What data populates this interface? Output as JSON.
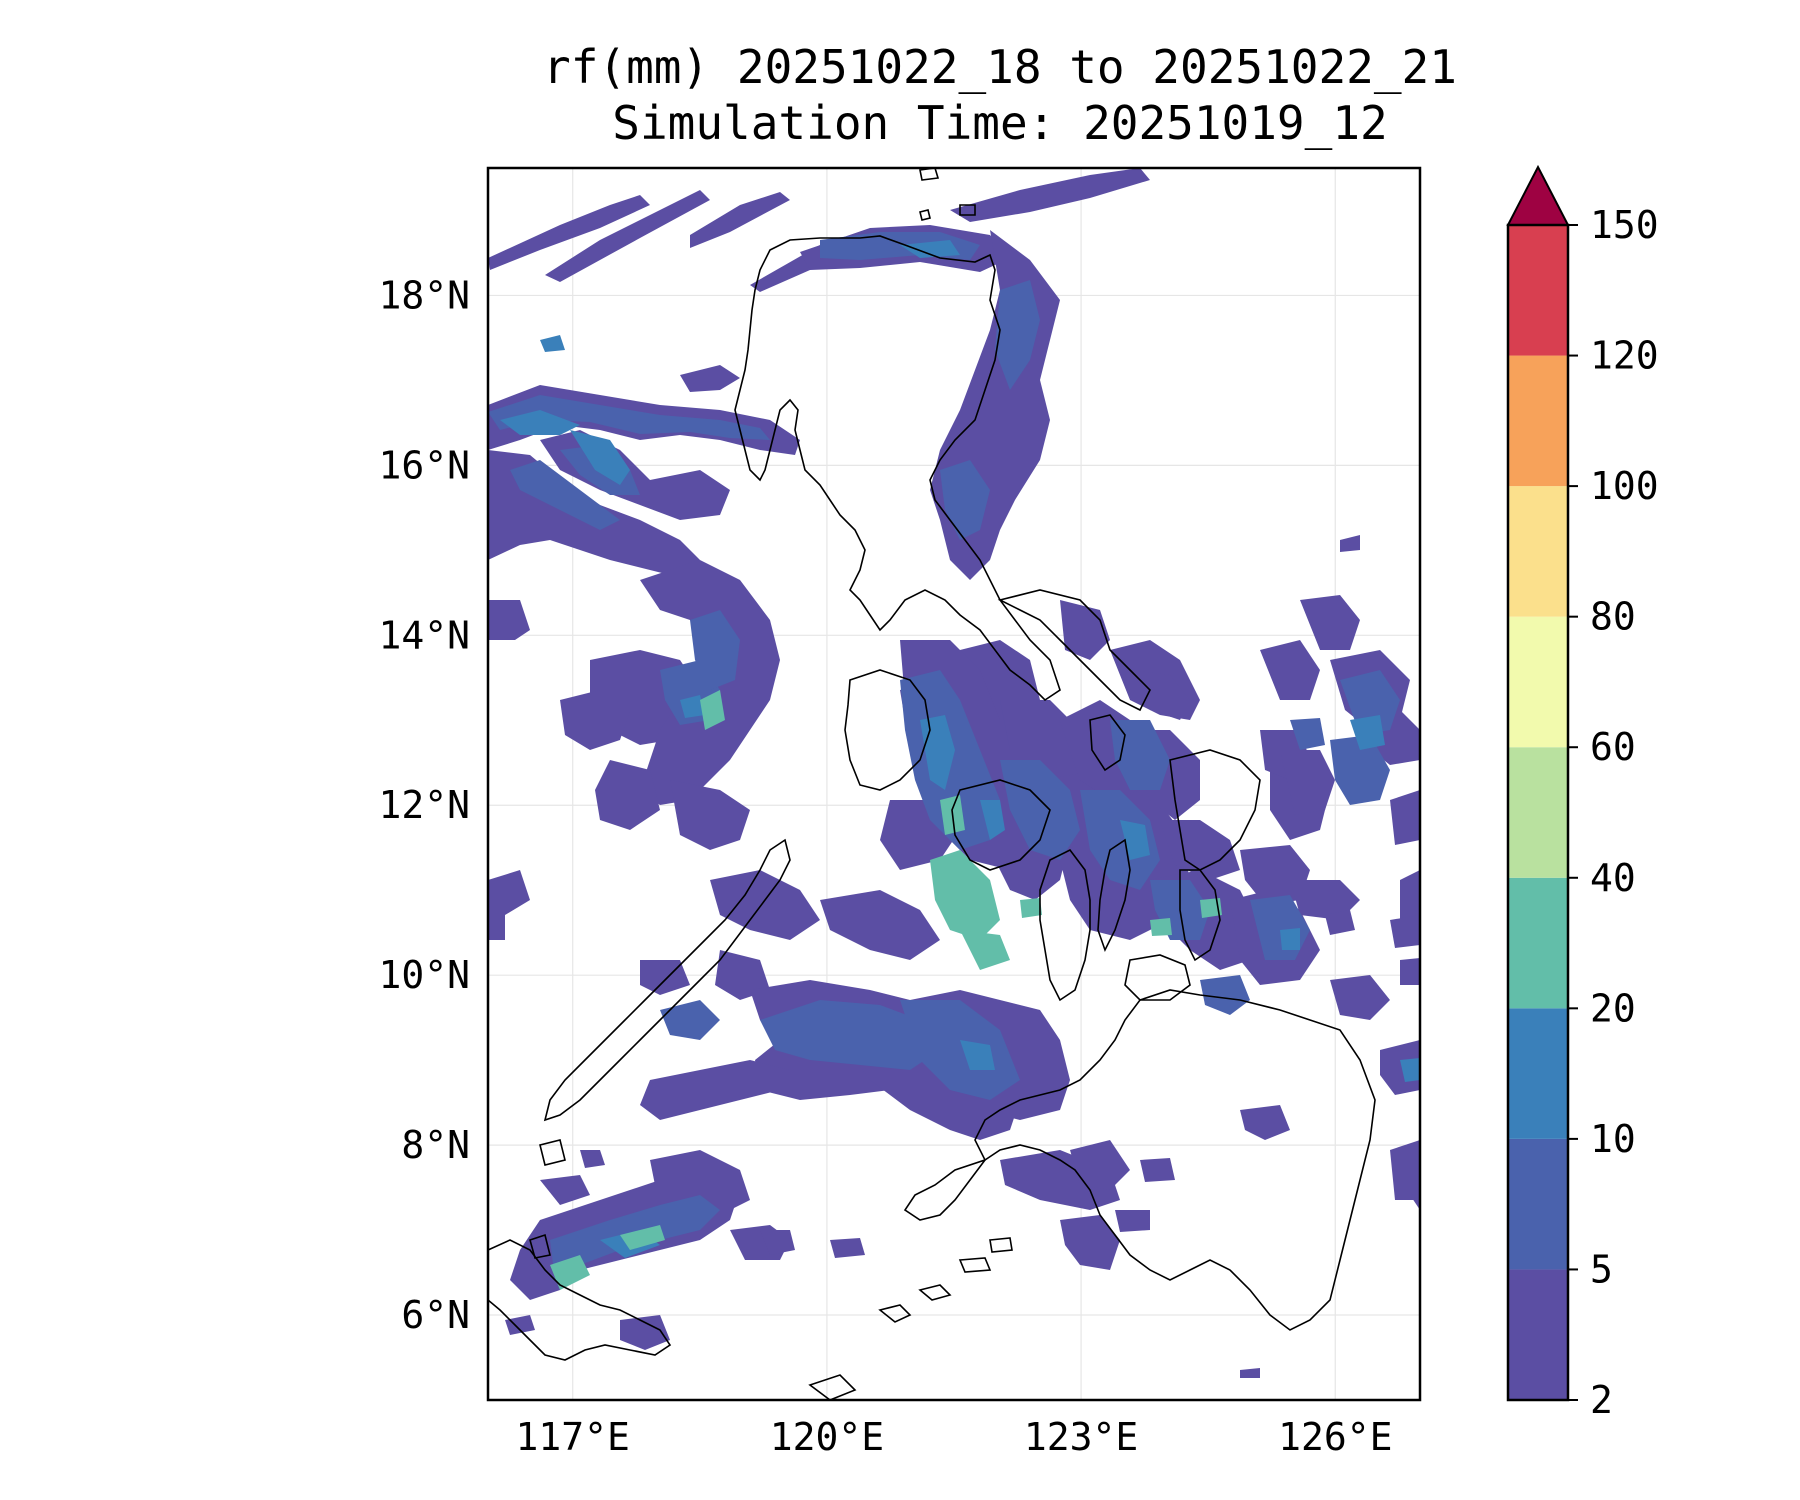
{
  "title": {
    "line1": "rf(mm) 20251022_18 to 20251022_21",
    "line2": "Simulation Time: 20251019_12"
  },
  "map": {
    "lon_labels": [
      "117°E",
      "120°E",
      "123°E",
      "126°E"
    ],
    "lat_labels": [
      "6°N",
      "8°N",
      "10°N",
      "12°N",
      "14°N",
      "16°N",
      "18°N"
    ],
    "extent": {
      "lon": [
        116.0,
        127.0
      ],
      "lat": [
        5.0,
        19.5
      ]
    }
  },
  "colorbar": {
    "levels": [
      "2",
      "5",
      "10",
      "20",
      "40",
      "60",
      "80",
      "100",
      "120",
      "150"
    ],
    "colors": [
      "#5b4ea3",
      "#4a62ad",
      "#3a80ba",
      "#62bea9",
      "#b9e19f",
      "#f2faad",
      "#fbe08c",
      "#f7a25a",
      "#d83f50",
      "#9e0242"
    ],
    "extend": "max"
  },
  "colors": {
    "outline": "#000000",
    "grid": "#e3e3e3"
  }
}
